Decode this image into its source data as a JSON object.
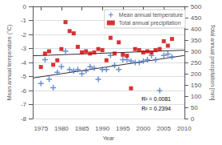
{
  "chart_data": {
    "type": "scatter",
    "xlabel": "Year",
    "ylabel": "Mean annual temperature (°C)",
    "y2label": "Total annual precipitation [mm]",
    "xlim": [
      1973,
      2010
    ],
    "xticks": [
      1975,
      1980,
      1985,
      1990,
      1995,
      2000,
      2005,
      2010
    ],
    "ylim": [
      -8,
      0
    ],
    "yticks": [
      -8,
      -7,
      -6,
      -5,
      -4,
      -3,
      -2,
      -1,
      0
    ],
    "y2lim": [
      0,
      500
    ],
    "y2ticks": [
      0,
      50,
      100,
      150,
      200,
      250,
      300,
      350,
      400,
      450,
      500
    ],
    "grid": true,
    "legend": "upper right",
    "series": [
      {
        "name": "Mean annual temperature",
        "type": "scatter",
        "color": "#4472C4",
        "marker": "plus",
        "x": [
          1975,
          1976,
          1977,
          1978,
          1979,
          1980,
          1981,
          1982,
          1983,
          1984,
          1985,
          1986,
          1987,
          1988,
          1989,
          1990,
          1991,
          1992,
          1993,
          1994,
          1995,
          1996,
          1997,
          1998,
          1999,
          2000,
          2001,
          2002,
          2003,
          2004,
          2005,
          2006,
          2007
        ],
        "values": [
          -5.5,
          -3.8,
          -5.2,
          -5.8,
          -4.7,
          -4.3,
          -3.2,
          -4.5,
          -4.6,
          -4.5,
          -4.8,
          -4.6,
          -4.3,
          -4.4,
          -5.2,
          -4.5,
          -4.5,
          -3.5,
          -4.2,
          -4.5,
          -3.8,
          -3.8,
          -3.9,
          -4.0,
          -4.0,
          -3.9,
          -3.8,
          -3.5,
          -3.8,
          -6.0,
          -3.5,
          -3.4,
          -3.6
        ]
      },
      {
        "name": "Total annual precipitation",
        "type": "scatter",
        "color": "#CC0000",
        "marker": "square",
        "axis": "y2",
        "x": [
          1975,
          1976,
          1977,
          1978,
          1979,
          1980,
          1981,
          1982,
          1983,
          1984,
          1985,
          1986,
          1987,
          1988,
          1989,
          1990,
          1991,
          1992,
          1993,
          1994,
          1995,
          1996,
          1997,
          1998,
          1999,
          2000,
          2001,
          2002,
          2003,
          2004,
          2005,
          2006,
          2007
        ],
        "values": [
          230,
          290,
          300,
          240,
          260,
          310,
          430,
          390,
          380,
          320,
          295,
          300,
          290,
          295,
          310,
          305,
          260,
          360,
          290,
          340,
          285,
          280,
          135,
          310,
          305,
          295,
          300,
          295,
          305,
          310,
          345,
          325,
          355
        ]
      },
      {
        "type": "line",
        "color": "#303030",
        "x": [
          1973,
          2010
        ],
        "values": [
          -5.1,
          -3.5
        ]
      },
      {
        "type": "line",
        "color": "#303030",
        "axis": "y2",
        "x": [
          1973,
          2010
        ],
        "values": [
          280,
          305
        ]
      }
    ],
    "annotations": [
      "R² = 0.0081",
      "R² = 0.2394"
    ]
  }
}
